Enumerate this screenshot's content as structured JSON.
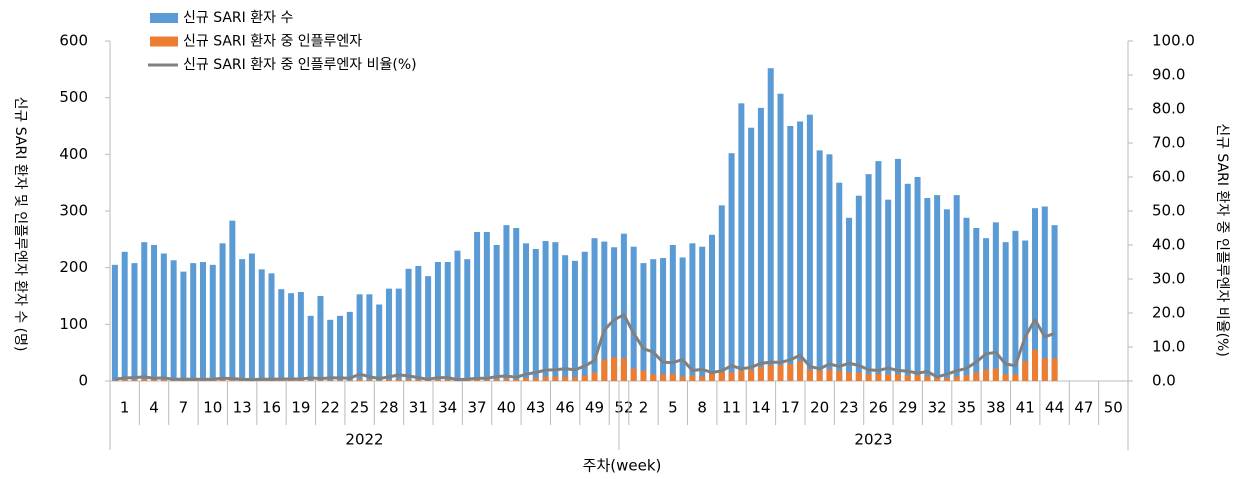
{
  "chart_data": {
    "type": "bar",
    "title": null,
    "y_label": "신규 SARI 환자 및 인플루엔자 환자 수 (명)",
    "y2_label": "신규 SARI 환자 중 인플루엔자 비율(%)",
    "x_label": "주차(week)",
    "x_groups": [
      "2022",
      "2023"
    ],
    "categories": [
      "1",
      null,
      null,
      "4",
      null,
      null,
      "7",
      null,
      null,
      "10",
      null,
      null,
      "13",
      null,
      null,
      "16",
      null,
      null,
      "19",
      null,
      null,
      "22",
      null,
      null,
      "25",
      null,
      null,
      "28",
      null,
      null,
      "31",
      null,
      null,
      "34",
      null,
      null,
      "37",
      null,
      null,
      "40",
      null,
      null,
      "43",
      null,
      null,
      "46",
      null,
      null,
      "49",
      null,
      null,
      "52",
      null,
      "2",
      null,
      null,
      "5",
      null,
      null,
      "8",
      null,
      null,
      "11",
      null,
      null,
      "14",
      null,
      null,
      "17",
      null,
      null,
      "20",
      null,
      null,
      "23",
      null,
      null,
      "26",
      null,
      null,
      "29",
      null,
      null,
      "32",
      null,
      null,
      "35",
      null,
      null,
      "38",
      null,
      null,
      "41",
      null,
      null,
      "44",
      null,
      null,
      "47",
      null,
      null,
      "50",
      null,
      null
    ],
    "series": [
      {
        "name": "신규 SARI 환자 수",
        "color": "#5b9bd5",
        "kind": "bar",
        "values": [
          205,
          228,
          208,
          245,
          240,
          225,
          213,
          193,
          208,
          210,
          205,
          243,
          283,
          215,
          225,
          197,
          190,
          162,
          155,
          157,
          115,
          150,
          108,
          115,
          122,
          153,
          153,
          135,
          163,
          163,
          198,
          203,
          185,
          210,
          210,
          230,
          215,
          263,
          263,
          240,
          275,
          270,
          243,
          233,
          247,
          245,
          222,
          212,
          228,
          252,
          246,
          236,
          260,
          237,
          208,
          215,
          217,
          240,
          218,
          243,
          237,
          258,
          310,
          402,
          490,
          447,
          482,
          552,
          507,
          450,
          458,
          470,
          407,
          400,
          350,
          288,
          327,
          365,
          388,
          320,
          392,
          348,
          360,
          323,
          328,
          303,
          328,
          288,
          270,
          252,
          280,
          245,
          265,
          248,
          305,
          308,
          275,
          null,
          null,
          null,
          null,
          null,
          null,
          null
        ]
      },
      {
        "name": "신규 SARI 환자 중 인플루엔자",
        "color": "#ed7d31",
        "kind": "bar",
        "values": [
          1,
          2,
          2,
          3,
          2,
          2,
          1,
          1,
          1,
          1,
          1,
          2,
          2,
          1,
          1,
          1,
          1,
          1,
          1,
          1,
          1,
          1,
          1,
          1,
          1,
          3,
          2,
          1,
          2,
          3,
          3,
          2,
          1,
          2,
          2,
          1,
          1,
          2,
          2,
          3,
          4,
          3,
          5,
          5,
          8,
          8,
          8,
          7,
          10,
          15,
          38,
          42,
          40,
          22,
          18,
          12,
          12,
          13,
          8,
          10,
          8,
          12,
          15,
          15,
          18,
          20,
          25,
          28,
          28,
          30,
          35,
          20,
          18,
          20,
          18,
          15,
          15,
          12,
          12,
          12,
          12,
          10,
          10,
          8,
          5,
          5,
          8,
          10,
          15,
          20,
          22,
          12,
          12,
          35,
          55,
          40,
          40,
          null,
          null,
          null,
          null,
          null,
          null,
          null
        ]
      },
      {
        "name": "신규 SARI 환자 중 인플루엔자 비율(%)",
        "color": "#808080",
        "kind": "line",
        "axis": "y2",
        "values": [
          0.5,
          0.9,
          1,
          1.2,
          0.8,
          0.9,
          0.5,
          0.5,
          0.5,
          0.5,
          0.5,
          0.8,
          0.7,
          0.5,
          0.4,
          0.5,
          0.5,
          0.6,
          0.6,
          0.6,
          0.9,
          0.7,
          0.9,
          0.9,
          0.8,
          2,
          1.3,
          0.7,
          1.2,
          1.8,
          1.5,
          1,
          0.5,
          1,
          1,
          0.4,
          0.5,
          0.8,
          0.8,
          1.3,
          1.5,
          1.1,
          2,
          2.5,
          3.2,
          3.3,
          3.6,
          3.3,
          4.4,
          6,
          15,
          18,
          19.5,
          14,
          9.5,
          8.5,
          5.5,
          5.4,
          6.3,
          3.1,
          3.4,
          2.5,
          3,
          4.5,
          3.6,
          4,
          5.2,
          5.5,
          5.5,
          6.2,
          7.6,
          4.3,
          3.6,
          5,
          4.3,
          5.2,
          4.6,
          3.3,
          3.1,
          3.8,
          3.1,
          2.9,
          2.3,
          2.8,
          1.2,
          2,
          3,
          3.7,
          5.6,
          8,
          8.4,
          5,
          4.5,
          13,
          18,
          13,
          14,
          null,
          null,
          null,
          null,
          null,
          null,
          null
        ]
      }
    ],
    "ylim": [
      0,
      600
    ],
    "yticks": [
      0,
      100,
      200,
      300,
      400,
      500,
      600
    ],
    "y2lim": [
      0,
      100
    ],
    "y2ticks": [
      {
        "value": 0,
        "label": "0.0"
      },
      {
        "value": 10,
        "label": "10.0"
      },
      {
        "value": 20,
        "label": "20.0"
      },
      {
        "value": 30,
        "label": "30.0"
      },
      {
        "value": 40,
        "label": "40.0"
      },
      {
        "value": 50,
        "label": "50.0"
      },
      {
        "value": 60,
        "label": "60.0"
      },
      {
        "value": 70,
        "label": "70.0"
      },
      {
        "value": 80,
        "label": "80.0"
      },
      {
        "value": 90,
        "label": "90.0"
      },
      {
        "value": 100,
        "label": "100.0"
      }
    ],
    "grid": false,
    "legend": "top-left"
  }
}
